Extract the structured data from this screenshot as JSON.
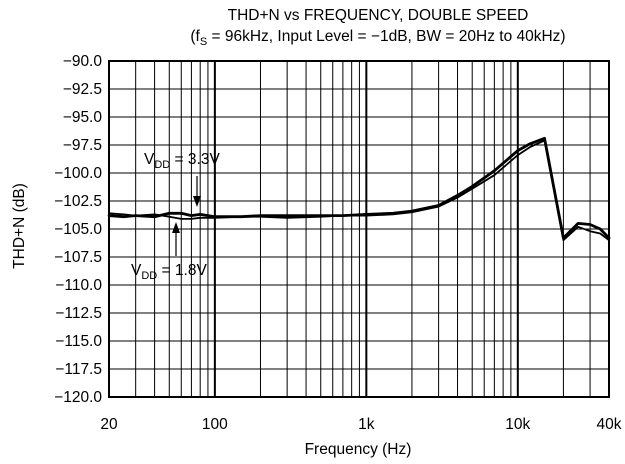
{
  "chart_data": {
    "type": "line",
    "title": "THD+N vs FREQUENCY, DOUBLE SPEED",
    "subtitle": {
      "prefix": "(f",
      "sub": "S",
      "rest": " = 96kHz, Input Level = −1dB, BW = 20Hz to 40kHz)"
    },
    "xlabel": "Frequency (Hz)",
    "ylabel": "THD+N (dB)",
    "x_scale": "log",
    "xlim": [
      20,
      40000
    ],
    "ylim": [
      -120,
      -90
    ],
    "grid": true,
    "x_ticks": [
      {
        "value": 20,
        "label": "20"
      },
      {
        "value": 100,
        "label": "100"
      },
      {
        "value": 1000,
        "label": "1k"
      },
      {
        "value": 10000,
        "label": "10k"
      },
      {
        "value": 40000,
        "label": "40k"
      }
    ],
    "y_ticks": [
      {
        "value": -90,
        "label": "−90.0"
      },
      {
        "value": -92.5,
        "label": "−92.5"
      },
      {
        "value": -95,
        "label": "−95.0"
      },
      {
        "value": -97.5,
        "label": "−97.5"
      },
      {
        "value": -100,
        "label": "−100.0"
      },
      {
        "value": -102.5,
        "label": "−102.5"
      },
      {
        "value": -105,
        "label": "−105.0"
      },
      {
        "value": -107.5,
        "label": "−107.5"
      },
      {
        "value": -110,
        "label": "−110.0"
      },
      {
        "value": -112.5,
        "label": "−112.5"
      },
      {
        "value": -115,
        "label": "−115.0"
      },
      {
        "value": -117.5,
        "label": "−117.5"
      },
      {
        "value": -120,
        "label": "−120.0"
      }
    ],
    "series": [
      {
        "name": "VDD = 3.3V",
        "x": [
          20,
          25,
          30,
          40,
          50,
          60,
          70,
          80,
          100,
          150,
          200,
          300,
          500,
          700,
          1000,
          1500,
          2000,
          3000,
          4000,
          5000,
          7000,
          10000,
          12000,
          15000,
          20000,
          25000,
          30000,
          35000,
          40000
        ],
        "y": [
          -103.8,
          -103.9,
          -103.8,
          -103.9,
          -103.6,
          -103.6,
          -103.8,
          -103.7,
          -103.9,
          -103.9,
          -103.8,
          -103.8,
          -103.8,
          -103.8,
          -103.7,
          -103.6,
          -103.4,
          -102.9,
          -102.0,
          -101.2,
          -99.8,
          -98.0,
          -97.4,
          -96.9,
          -105.8,
          -104.5,
          -104.6,
          -105.0,
          -105.8
        ],
        "color": "#000000"
      },
      {
        "name": "VDD = 1.8V",
        "x": [
          20,
          25,
          30,
          40,
          50,
          60,
          70,
          80,
          100,
          150,
          200,
          300,
          500,
          700,
          1000,
          1500,
          2000,
          3000,
          4000,
          5000,
          7000,
          10000,
          12000,
          15000,
          20000,
          25000,
          30000,
          35000,
          40000
        ],
        "y": [
          -103.6,
          -103.7,
          -103.8,
          -103.7,
          -103.9,
          -104.1,
          -104.1,
          -104.0,
          -104.0,
          -103.9,
          -103.9,
          -104.0,
          -103.9,
          -103.8,
          -103.8,
          -103.7,
          -103.5,
          -103.0,
          -102.2,
          -101.4,
          -100.2,
          -98.4,
          -97.7,
          -97.1,
          -106.0,
          -104.8,
          -105.2,
          -105.4,
          -106.0
        ],
        "color": "#000000"
      }
    ],
    "annotations": [
      {
        "base": "V",
        "sub": "DD",
        "rest": " = 3.3V",
        "arrow": "down"
      },
      {
        "base": "V",
        "sub": "DD",
        "rest": " = 1.8V",
        "arrow": "up"
      }
    ]
  }
}
